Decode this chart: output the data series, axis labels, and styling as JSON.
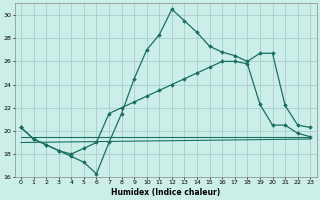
{
  "xlabel": "Humidex (Indice chaleur)",
  "background_color": "#cceee8",
  "grid_color": "#aacccc",
  "line_color": "#1a7060",
  "xlim": [
    -0.5,
    23.5
  ],
  "ylim": [
    16,
    31
  ],
  "yticks": [
    16,
    18,
    20,
    22,
    24,
    26,
    28,
    30
  ],
  "xticks": [
    0,
    1,
    2,
    3,
    4,
    5,
    6,
    7,
    8,
    9,
    10,
    11,
    12,
    13,
    14,
    15,
    16,
    17,
    18,
    19,
    20,
    21,
    22,
    23
  ],
  "line1_x": [
    0,
    1,
    2,
    3,
    4,
    5,
    6,
    7,
    8,
    9,
    10,
    11,
    12,
    13,
    14,
    15,
    16,
    17,
    18,
    19,
    20,
    21,
    22,
    23
  ],
  "line1_y": [
    20.3,
    19.3,
    18.8,
    18.3,
    17.8,
    17.3,
    16.3,
    19.0,
    21.5,
    24.5,
    27.0,
    28.3,
    30.5,
    29.5,
    28.5,
    27.3,
    26.8,
    26.5,
    26.0,
    26.7,
    26.7,
    22.2,
    20.5,
    20.3
  ],
  "line2_x": [
    0,
    1,
    2,
    3,
    4,
    5,
    6,
    7,
    8,
    9,
    10,
    11,
    12,
    13,
    14,
    15,
    16,
    17,
    18,
    19,
    20,
    21,
    22,
    23
  ],
  "line2_y": [
    20.3,
    19.3,
    18.8,
    18.3,
    18.0,
    18.5,
    19.0,
    21.5,
    22.0,
    22.5,
    23.0,
    23.5,
    24.0,
    24.5,
    25.0,
    25.5,
    26.0,
    26.0,
    25.8,
    22.3,
    20.5,
    20.5,
    19.8,
    19.5
  ],
  "line3_x": [
    0,
    23
  ],
  "line3_y": [
    19.5,
    19.5
  ],
  "line4_x": [
    0,
    23
  ],
  "line4_y": [
    19.0,
    19.3
  ],
  "figwidth": 3.2,
  "figheight": 2.0,
  "dpi": 100
}
